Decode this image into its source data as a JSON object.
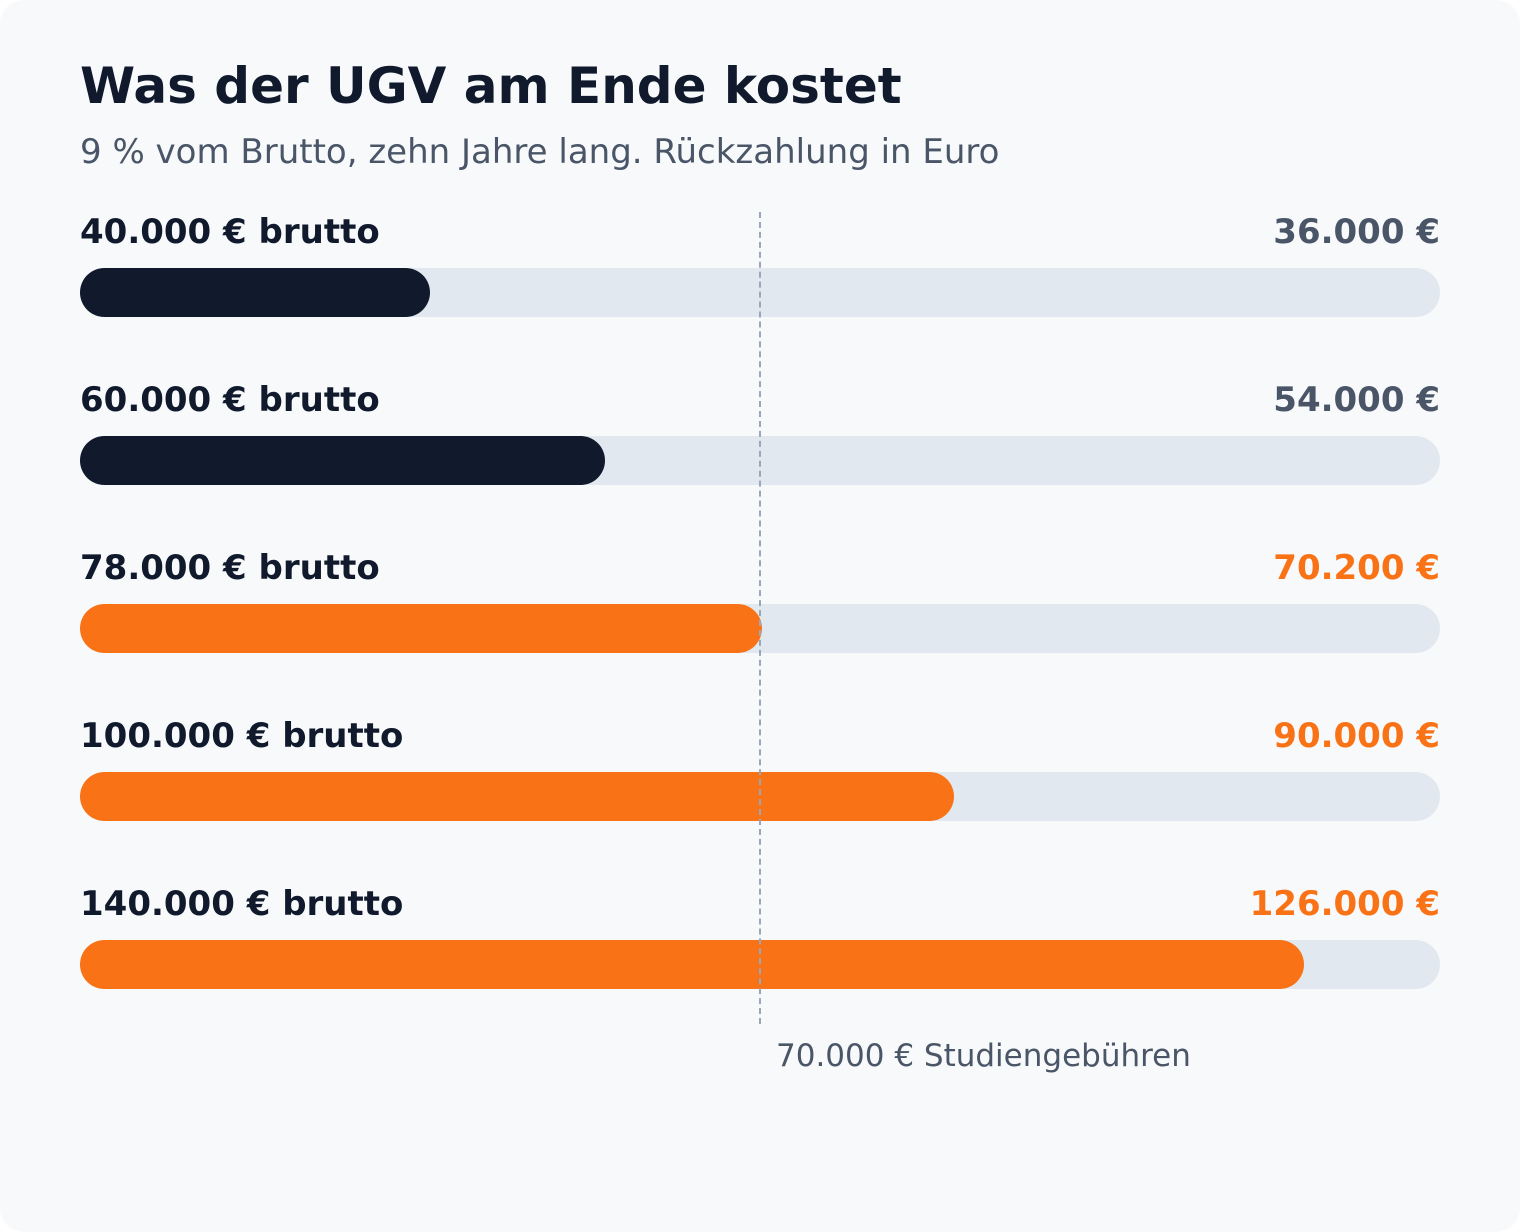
{
  "title": "Was der UGV am Ende kostet",
  "subtitle": "9 % vom Brutto, zehn Jahre lang. Rückzahlung in Euro",
  "colors": {
    "background": "#f7f9fb",
    "below_reference": "#111a2c",
    "above_reference": "#f97316",
    "track": "#e1e8f0",
    "label_text": "#111a2c",
    "muted_text": "#4a5668",
    "reference_line": "#9aa7b9"
  },
  "chart_data": {
    "type": "bar",
    "orientation": "horizontal",
    "title": "Was der UGV am Ende kostet",
    "subtitle": "9 % vom Brutto, zehn Jahre lang. Rückzahlung in Euro",
    "unit": "€",
    "xlim": [
      0,
      140000
    ],
    "grid": false,
    "categories": [
      "40.000 € brutto",
      "60.000 € brutto",
      "78.000 € brutto",
      "100.000 € brutto",
      "140.000 € brutto"
    ],
    "values": [
      36000,
      54000,
      70200,
      90000,
      126000
    ],
    "value_labels": [
      "36.000 €",
      "54.000 €",
      "70.200 €",
      "90.000 €",
      "126.000 €"
    ],
    "reference": {
      "value": 70000,
      "label": "70.000 € Studiengebühren"
    }
  }
}
